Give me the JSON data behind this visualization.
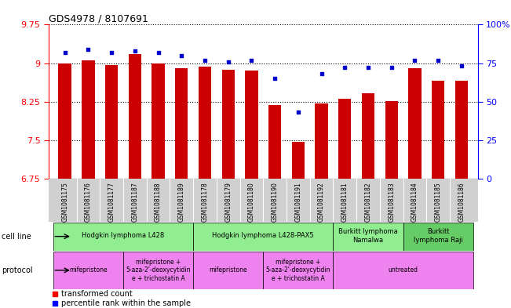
{
  "title": "GDS4978 / 8107691",
  "samples": [
    "GSM1081175",
    "GSM1081176",
    "GSM1081177",
    "GSM1081187",
    "GSM1081188",
    "GSM1081189",
    "GSM1081178",
    "GSM1081179",
    "GSM1081180",
    "GSM1081190",
    "GSM1081191",
    "GSM1081192",
    "GSM1081181",
    "GSM1081182",
    "GSM1081183",
    "GSM1081184",
    "GSM1081185",
    "GSM1081186"
  ],
  "bar_values": [
    9.0,
    9.05,
    8.97,
    9.17,
    9.0,
    8.9,
    8.93,
    8.87,
    8.85,
    8.18,
    7.47,
    8.22,
    8.3,
    8.42,
    8.26,
    8.9,
    8.65,
    8.65
  ],
  "dot_values": [
    82,
    84,
    82,
    83,
    82,
    80,
    77,
    76,
    77,
    65,
    43,
    68,
    72,
    72,
    72,
    77,
    77,
    73
  ],
  "ylim_lo": 6.75,
  "ylim_hi": 9.75,
  "yticks": [
    6.75,
    7.5,
    8.25,
    9.0,
    9.75
  ],
  "ytick_labels": [
    "6.75",
    "7.5",
    "8.25",
    "9",
    "9.75"
  ],
  "right_yticks": [
    0,
    25,
    50,
    75,
    100
  ],
  "right_ytick_labels": [
    "0",
    "25",
    "50",
    "75",
    "100%"
  ],
  "bar_color": "#cc0000",
  "dot_color": "#0000cc",
  "bar_width": 0.55,
  "cell_line_groups": [
    {
      "label": "Hodgkin lymphoma L428",
      "start": 0,
      "end": 5,
      "color": "#90ee90"
    },
    {
      "label": "Hodgkin lymphoma L428-PAX5",
      "start": 6,
      "end": 11,
      "color": "#90ee90"
    },
    {
      "label": "Burkitt lymphoma\nNamalwa",
      "start": 12,
      "end": 14,
      "color": "#90ee90"
    },
    {
      "label": "Burkitt\nlymphoma Raji",
      "start": 15,
      "end": 17,
      "color": "#66cc66"
    }
  ],
  "protocol_groups": [
    {
      "label": "mifepristone",
      "start": 0,
      "end": 2,
      "color": "#ee82ee"
    },
    {
      "label": "mifepristone +\n5-aza-2'-deoxycytidin\ne + trichostatin A",
      "start": 3,
      "end": 5,
      "color": "#ee82ee"
    },
    {
      "label": "mifepristone",
      "start": 6,
      "end": 8,
      "color": "#ee82ee"
    },
    {
      "label": "mifepristone +\n5-aza-2'-deoxycytidin\ne + trichostatin A",
      "start": 9,
      "end": 11,
      "color": "#ee82ee"
    },
    {
      "label": "untreated",
      "start": 12,
      "end": 17,
      "color": "#ee82ee"
    }
  ],
  "legend_bar_label": "transformed count",
  "legend_dot_label": "percentile rank within the sample",
  "xtick_bg": "#d0d0d0"
}
